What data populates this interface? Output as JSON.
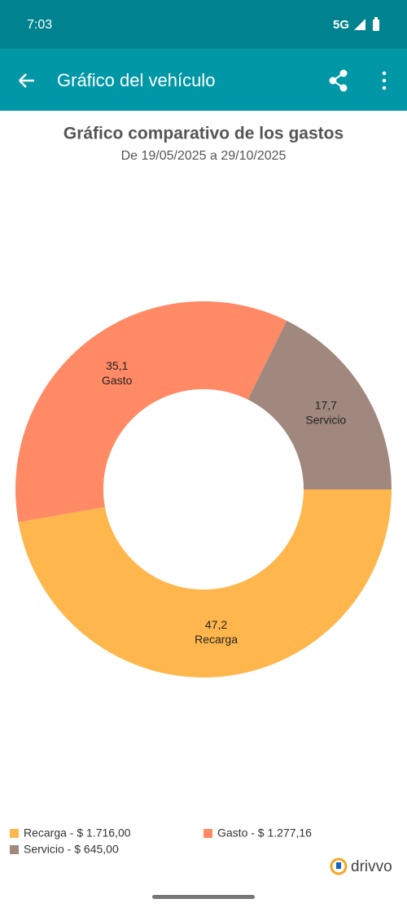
{
  "status_bar": {
    "time": "7:03",
    "network": "5G"
  },
  "app_bar": {
    "title": "Gráfico del vehículo"
  },
  "chart_data": {
    "type": "donut",
    "title": "Gráfico comparativo de los gastos",
    "subtitle": "De 19/05/2025 a 29/10/2025",
    "categories": [
      "Recarga",
      "Gasto",
      "Servicio"
    ],
    "values": [
      47.2,
      35.1,
      17.7
    ],
    "value_labels": [
      "47,2",
      "35,1",
      "17,7"
    ],
    "colors": [
      "#ffb74d",
      "#ff8a65",
      "#a1887f"
    ],
    "legend": [
      "Recarga - $ 1.716,00",
      "Gasto - $ 1.277,16",
      "Servicio - $ 645,00"
    ]
  },
  "brand": "drivvo"
}
